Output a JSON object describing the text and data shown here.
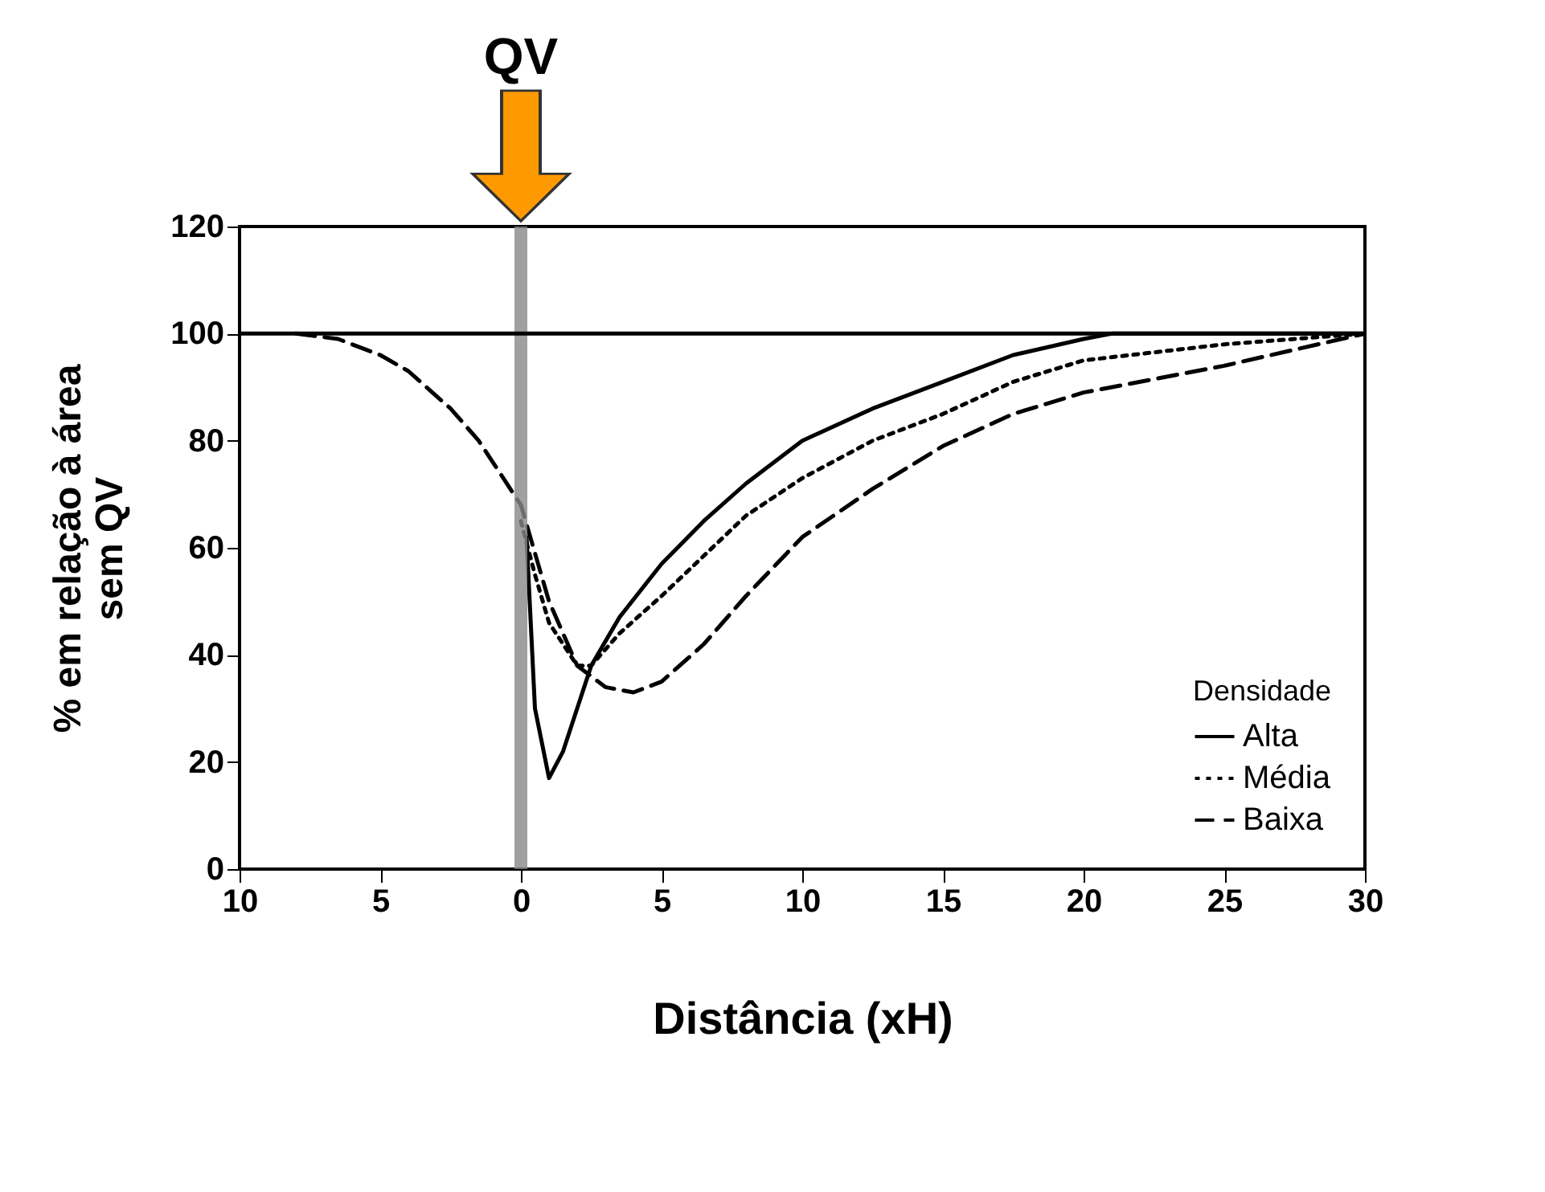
{
  "chart_data": {
    "type": "line",
    "xlabel": "Distância (xH)",
    "ylabel": "% em relação à área sem QV",
    "legend_title": "Densidade",
    "legend": "bottom right",
    "grid": false,
    "xlim": [
      -10,
      30
    ],
    "ylim": [
      0,
      120
    ],
    "xticks": [
      {
        "value": -10,
        "label": "10"
      },
      {
        "value": -5,
        "label": "5"
      },
      0,
      5,
      10,
      15,
      20,
      25,
      30
    ],
    "yticks": [
      0,
      20,
      40,
      60,
      80,
      100,
      120
    ],
    "ref_lines": [
      {
        "axis": "x",
        "value": 0,
        "label": "QV",
        "color": "#888888"
      },
      {
        "axis": "y",
        "value": 100,
        "color": "#000000"
      }
    ],
    "series": [
      {
        "name": "Alta",
        "color": "#000000",
        "line_style": "solid",
        "x": [
          0.2,
          0.5,
          1,
          1.5,
          2.5,
          3.5,
          5,
          6.5,
          8,
          10,
          12.5,
          15,
          17.5,
          20,
          21,
          25,
          30
        ],
        "values": [
          62,
          30,
          17,
          22,
          38,
          47,
          57,
          65,
          72,
          80,
          86,
          91,
          96,
          99,
          100,
          100,
          100
        ]
      },
      {
        "name": "Média",
        "color": "#000000",
        "line_style": "dotted",
        "x": [
          0,
          0.5,
          1,
          2,
          2.5,
          3.5,
          5,
          6,
          8,
          10,
          12.5,
          15,
          17.5,
          20,
          25,
          30
        ],
        "values": [
          65,
          55,
          46,
          38,
          38,
          44,
          51,
          56,
          66,
          73,
          80,
          85,
          91,
          95,
          98,
          100
        ]
      },
      {
        "name": "Baixa",
        "color": "#000000",
        "line_style": "dashed",
        "x": [
          -8,
          -6.5,
          -5,
          -4,
          -2.5,
          -1.5,
          -1,
          0,
          1,
          2,
          3,
          4,
          5,
          6.5,
          8,
          10,
          12.5,
          15,
          17.5,
          20,
          25,
          30
        ],
        "values": [
          100,
          99,
          96,
          93,
          86,
          80,
          76,
          68,
          50,
          38,
          34,
          33,
          35,
          42,
          51,
          62,
          71,
          79,
          85,
          89,
          94,
          100
        ]
      }
    ]
  }
}
